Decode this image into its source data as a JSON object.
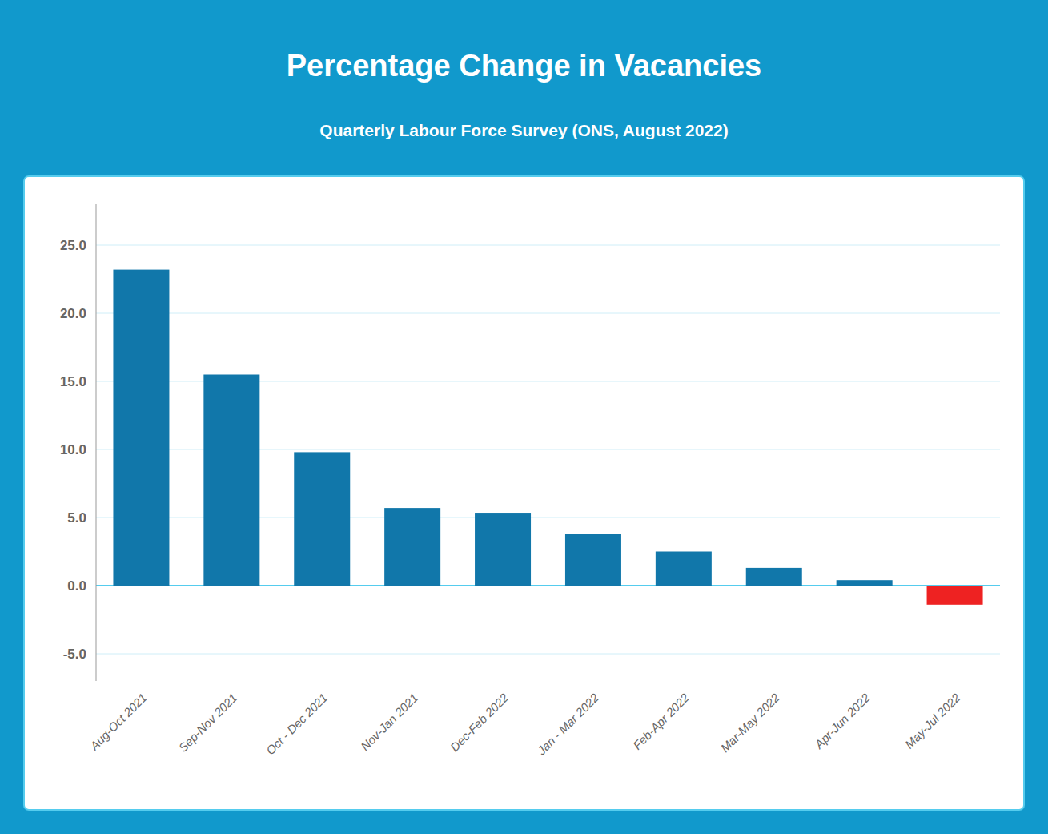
{
  "chart_data": {
    "type": "bar",
    "title": "Percentage Change in Vacancies",
    "subtitle": "Quarterly Labour Force Survey (ONS, August 2022)",
    "categories": [
      "Aug-Oct 2021",
      "Sep-Nov 2021",
      "Oct - Dec 2021",
      "Nov-Jan 2021",
      "Dec-Feb 2022",
      "Jan - Mar 2022",
      "Feb-Apr 2022",
      "Mar-May 2022",
      "Apr-Jun 2022",
      "May-Jul 2022"
    ],
    "values": [
      23.2,
      15.5,
      9.8,
      5.7,
      5.35,
      3.8,
      2.5,
      1.3,
      0.4,
      -1.4
    ],
    "colors": [
      "#1177aa",
      "#1177aa",
      "#1177aa",
      "#1177aa",
      "#1177aa",
      "#1177aa",
      "#1177aa",
      "#1177aa",
      "#1177aa",
      "#ee2222"
    ],
    "ylim": [
      -7,
      28
    ],
    "yticks": [
      {
        "value": -5.0,
        "label": "-5.0"
      },
      {
        "value": 0.0,
        "label": "0.0"
      },
      {
        "value": 5.0,
        "label": "5.0"
      },
      {
        "value": 10.0,
        "label": "10.0"
      },
      {
        "value": 15.0,
        "label": "15.0"
      },
      {
        "value": 20.0,
        "label": "20.0"
      },
      {
        "value": 25.0,
        "label": "25.0"
      }
    ],
    "grid": true
  }
}
